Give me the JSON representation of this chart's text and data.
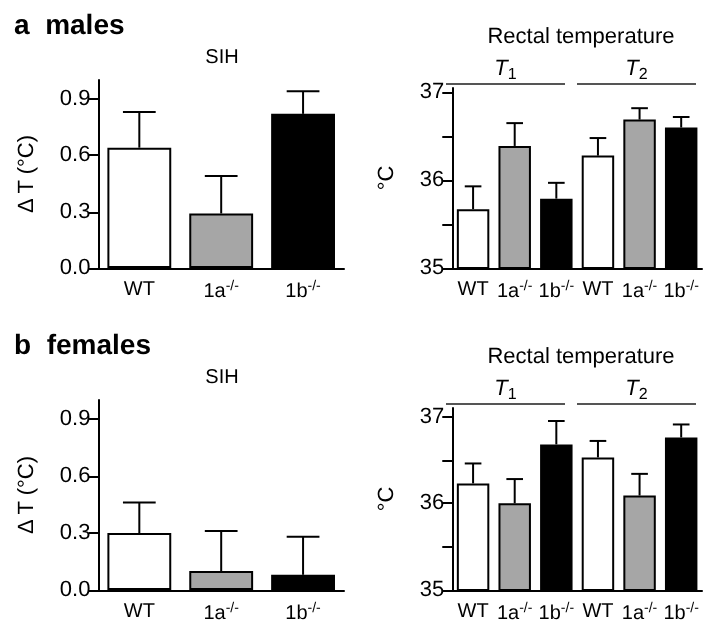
{
  "chart_data": [
    {
      "type": "bar",
      "title": "a  males",
      "subtitle": "SIH",
      "ylabel": "Δ T (°C)",
      "categories": [
        "WT",
        "1a$^{-/-}$",
        "1b$^{-/-}$"
      ],
      "colors": [
        "#ffffff",
        "#a6a6a6",
        "#000000"
      ],
      "values": [
        0.64,
        0.29,
        0.82
      ],
      "errors": [
        [
          0.64,
          0.83
        ],
        [
          0.29,
          0.49
        ],
        [
          0.82,
          0.94
        ]
      ],
      "ylim": [
        0,
        1.0
      ],
      "yticks": [
        {
          "value": 0,
          "label": "0.0"
        },
        0.3,
        0.6,
        0.9
      ]
    },
    {
      "type": "bar",
      "title": "Rectal temperature",
      "ylabel": "°C",
      "categories": [
        "WT",
        "1a$^{-/-}$",
        "1b$^{-/-}$",
        "WT",
        "1a$^{-/-}$",
        "1b$^{-/-}$"
      ],
      "colors": [
        "#ffffff",
        "#a6a6a6",
        "#000000",
        "#ffffff",
        "#a6a6a6",
        "#000000"
      ],
      "values": [
        35.67,
        36.39,
        35.79,
        36.28,
        36.69,
        36.6
      ],
      "errors": [
        [
          35.67,
          35.93
        ],
        [
          36.39,
          36.65
        ],
        [
          35.79,
          35.97
        ],
        [
          36.28,
          36.48
        ],
        [
          36.69,
          36.82
        ],
        [
          36.6,
          36.72
        ]
      ],
      "ylim": [
        35,
        37.05
      ],
      "yticks": [
        35,
        {
          "value": 35.5,
          "label": null
        },
        36,
        {
          "value": 36.5,
          "label": null
        },
        37
      ],
      "annotations": [
        "T$_{1}$",
        "T$_{2}$"
      ]
    },
    {
      "type": "bar",
      "title": "b  females",
      "subtitle": "SIH",
      "ylabel": "Δ T (°C)",
      "categories": [
        "WT",
        "1a$^{-/-}$",
        "1b$^{-/-}$"
      ],
      "colors": [
        "#ffffff",
        "#a6a6a6",
        "#000000"
      ],
      "values": [
        0.3,
        0.1,
        0.08
      ],
      "errors": [
        [
          0.3,
          0.46
        ],
        [
          0.1,
          0.31
        ],
        [
          0.08,
          0.28
        ]
      ],
      "ylim": [
        0,
        1.0
      ],
      "yticks": [
        {
          "value": 0,
          "label": "0.0"
        },
        0.3,
        0.6,
        0.9
      ]
    },
    {
      "type": "bar",
      "title": "Rectal temperature",
      "ylabel": "°C",
      "categories": [
        "WT",
        "1a$^{-/-}$",
        "1b$^{-/-}$",
        "WT",
        "1a$^{-/-}$",
        "1b$^{-/-}$"
      ],
      "colors": [
        "#ffffff",
        "#a6a6a6",
        "#000000",
        "#ffffff",
        "#a6a6a6",
        "#000000"
      ],
      "values": [
        36.23,
        36.0,
        36.68,
        36.53,
        36.09,
        36.76
      ],
      "errors": [
        [
          36.23,
          36.46
        ],
        [
          36.0,
          36.28
        ],
        [
          36.68,
          36.95
        ],
        [
          36.53,
          36.72
        ],
        [
          36.09,
          36.34
        ],
        [
          36.76,
          36.91
        ]
      ],
      "ylim": [
        35,
        37.1
      ],
      "yticks": [
        35,
        {
          "value": 35.5,
          "label": null
        },
        36,
        {
          "value": 36.5,
          "label": null
        },
        37
      ],
      "annotations": [
        "T$_{1}$",
        "T$_{2}$"
      ]
    }
  ]
}
